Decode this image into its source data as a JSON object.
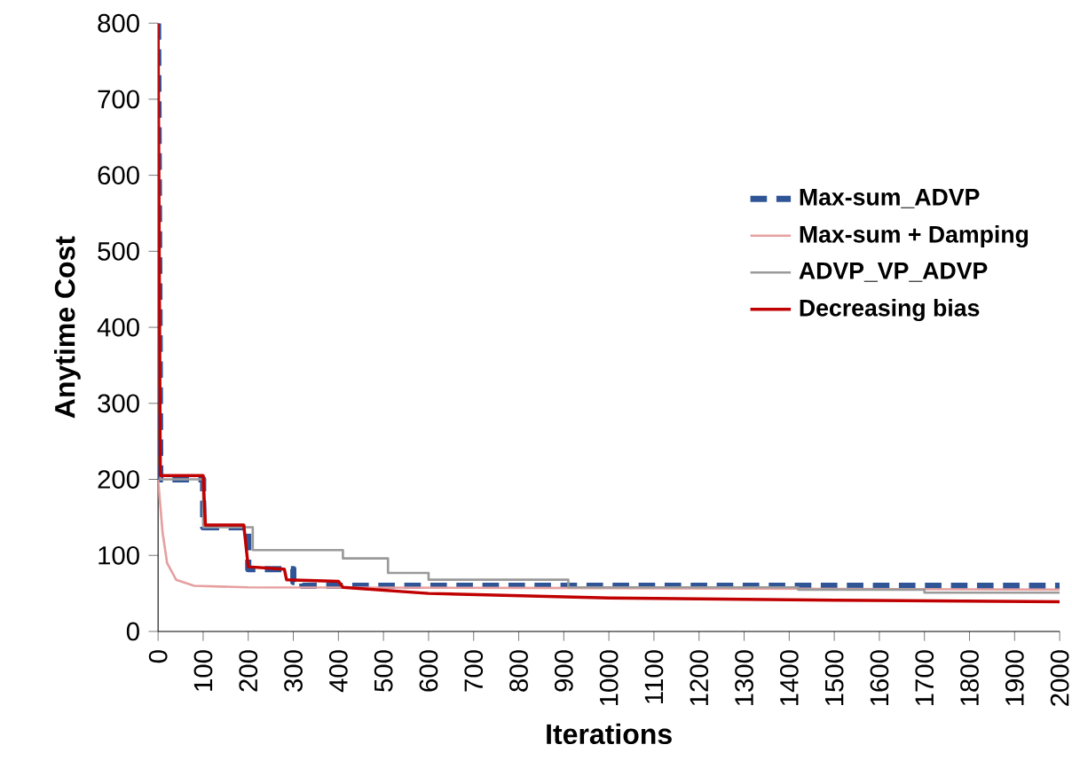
{
  "chart_data": {
    "type": "line",
    "xlabel": "Iterations",
    "ylabel": "Anytime Cost",
    "xlim": [
      0,
      2000
    ],
    "ylim": [
      0,
      800
    ],
    "xticks": [
      0,
      100,
      200,
      300,
      400,
      500,
      600,
      700,
      800,
      900,
      1000,
      1100,
      1200,
      1300,
      1400,
      1500,
      1600,
      1700,
      1800,
      1900,
      2000
    ],
    "yticks": [
      0,
      100,
      200,
      300,
      400,
      500,
      600,
      700,
      800
    ],
    "grid": false,
    "legend": "right",
    "series": [
      {
        "name": "Max-sum_ADVP",
        "color": "#2f5597",
        "line_style": "dashed",
        "x": [
          0,
          5,
          100,
          100,
          200,
          200,
          300,
          300,
          320,
          320,
          2000
        ],
        "values": [
          800,
          200,
          200,
          137,
          137,
          82,
          82,
          65,
          65,
          60,
          60
        ]
      },
      {
        "name": "Max-sum + Damping",
        "color": "#e6a0a0",
        "line_style": "solid",
        "x": [
          0,
          10,
          20,
          40,
          80,
          200,
          1000,
          2000
        ],
        "values": [
          200,
          130,
          90,
          68,
          60,
          58,
          57,
          55
        ]
      },
      {
        "name": "ADVP_VP_ADVP",
        "color": "#9a9a9a",
        "line_style": "solid",
        "x": [
          0,
          5,
          100,
          100,
          210,
          210,
          410,
          410,
          510,
          510,
          600,
          600,
          910,
          910,
          1420,
          1420,
          1700,
          1700,
          2000
        ],
        "values": [
          800,
          200,
          200,
          137,
          137,
          107,
          107,
          96,
          96,
          77,
          77,
          68,
          68,
          58,
          58,
          55,
          55,
          51,
          51
        ]
      },
      {
        "name": "Decreasing bias",
        "color": "#c00000",
        "line_style": "solid",
        "x": [
          0,
          5,
          100,
          105,
          190,
          200,
          280,
          285,
          400,
          410,
          600,
          1000,
          1500,
          2000
        ],
        "values": [
          800,
          205,
          205,
          140,
          140,
          85,
          82,
          68,
          66,
          58,
          50,
          44,
          41,
          39
        ]
      }
    ]
  }
}
